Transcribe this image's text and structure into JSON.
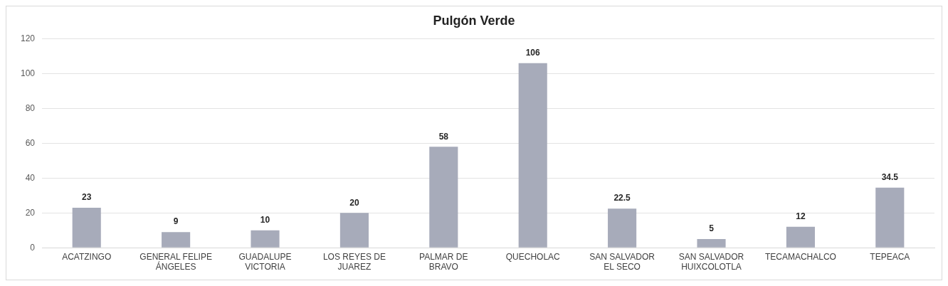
{
  "chart_data": {
    "type": "bar",
    "title": "Pulgón Verde",
    "categories": [
      "ACATZINGO",
      "GENERAL FELIPE ÁNGELES",
      "GUADALUPE VICTORIA",
      "LOS REYES DE JUAREZ",
      "PALMAR DE BRAVO",
      "QUECHOLAC",
      "SAN SALVADOR EL SECO",
      "SAN SALVADOR HUIXCOLOTLA",
      "TECAMACHALCO",
      "TEPEACA"
    ],
    "values": [
      23,
      9,
      10,
      20,
      58,
      106,
      22.5,
      5,
      12,
      34.5
    ],
    "color": "#a7abba",
    "ylim": [
      0,
      120
    ],
    "yticks": [
      0,
      20,
      40,
      60,
      80,
      100,
      120
    ],
    "grid": "y",
    "data_labels": true,
    "legend": false
  }
}
